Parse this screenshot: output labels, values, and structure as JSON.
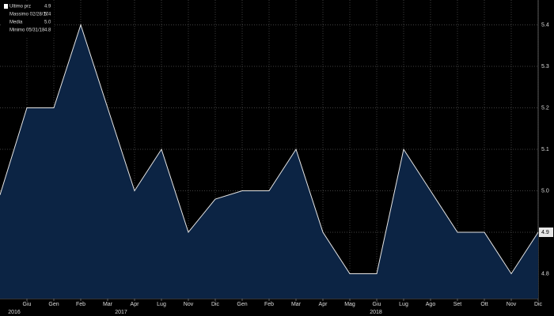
{
  "chart_data": {
    "type": "area",
    "categories": [
      null,
      "Giu",
      "Gen",
      "Feb",
      "Mar",
      "Apr",
      "Lug",
      "Nov",
      "Dic",
      "Gen",
      "Feb",
      "Mar",
      "Apr",
      "Mag",
      "Giu",
      "Lug",
      "Ago",
      "Set",
      "Ott",
      "Nov",
      "Dic"
    ],
    "values": [
      4.99,
      5.2,
      5.2,
      5.4,
      5.2,
      5.0,
      5.1,
      4.9,
      4.98,
      5.0,
      5.0,
      5.1,
      4.9,
      4.8,
      4.8,
      5.1,
      5.0,
      4.9,
      4.9,
      4.8,
      4.9
    ],
    "years": [
      "2016",
      "2017",
      "2018"
    ],
    "color": "#0c2444",
    "line_color": "#e6e6e6",
    "ylim": [
      4.74,
      5.46
    ],
    "yticks": [
      4.8,
      4.9,
      {
        "value": 5,
        "label": "5.0"
      },
      5.1,
      5.2,
      5.3,
      5.4
    ],
    "grid": true,
    "legend": [
      {
        "name": "Ultimo prz",
        "value": "4.9"
      },
      {
        "name": "Massimo 02/28/17",
        "value": "5.4"
      },
      {
        "name": "Media",
        "value": "5.0"
      },
      {
        "name": "Minimo 05/31/18",
        "value": "4.8"
      }
    ]
  }
}
